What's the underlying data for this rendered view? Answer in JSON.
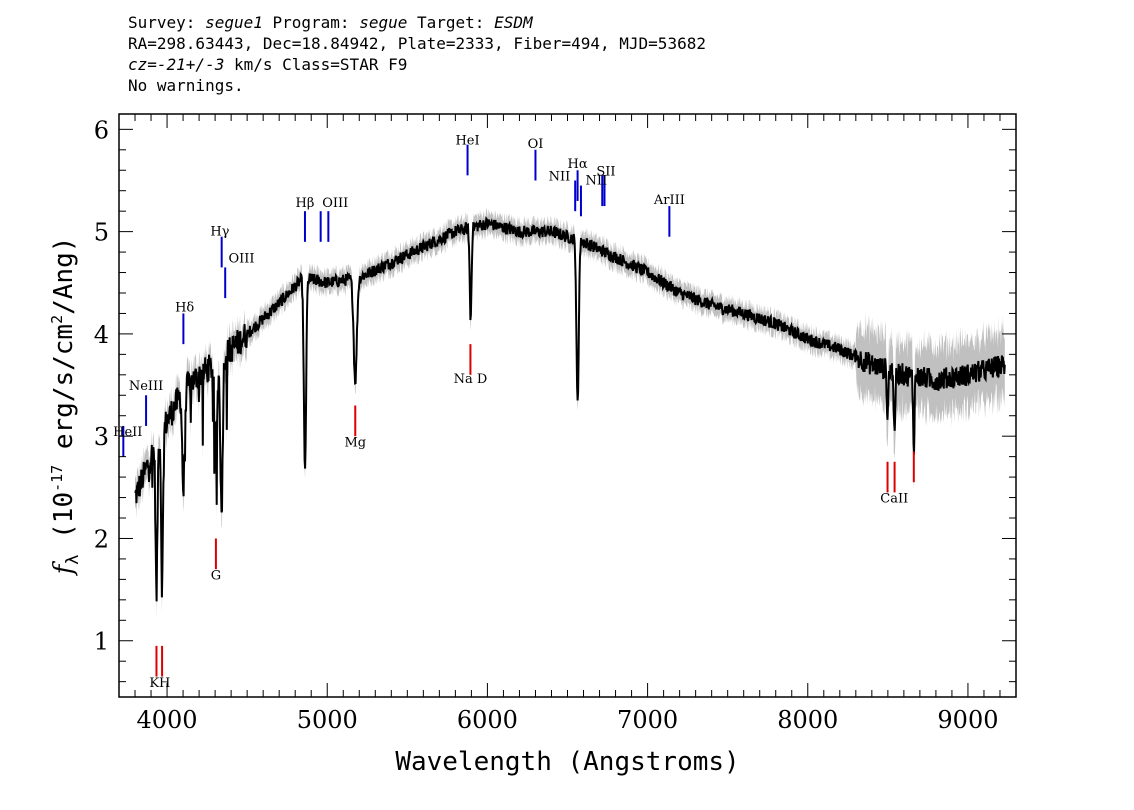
{
  "header": {
    "survey_label": "Survey: ",
    "survey_value": "segue1",
    "program_label": " Program: ",
    "program_value": "segue",
    "target_label": " Target: ",
    "target_value": "ESDM",
    "line2": "RA=298.63443, Dec=18.84942, Plate=2333, Fiber=494, MJD=53682",
    "cz_label": "cz",
    "cz_value": "=-21+/-3",
    "cz_rest": " km/s Class=STAR F9",
    "warnings": "No warnings."
  },
  "chart_data": {
    "type": "line",
    "xlabel": "Wavelength (Angstroms)",
    "ylabel": "f_λ (10^-17 erg/s/cm^2/Ang)",
    "xlim": [
      3700,
      9300
    ],
    "ylim": [
      0.45,
      6.15
    ],
    "x_ticks": [
      4000,
      5000,
      6000,
      7000,
      8000,
      9000
    ],
    "y_ticks": [
      1,
      2,
      3,
      4,
      5,
      6
    ],
    "grid": false,
    "colors": {
      "flux": "#000000",
      "error": "#c0c0c0",
      "emission": "#0000cc",
      "absorption": "#dd0000",
      "label_line": "#555555"
    },
    "continuum_points": [
      [
        3800,
        2.4
      ],
      [
        3900,
        2.8
      ],
      [
        4000,
        3.15
      ],
      [
        4100,
        3.45
      ],
      [
        4200,
        3.6
      ],
      [
        4300,
        3.7
      ],
      [
        4400,
        3.85
      ],
      [
        4500,
        4.0
      ],
      [
        4700,
        4.3
      ],
      [
        4850,
        4.55
      ],
      [
        5000,
        4.5
      ],
      [
        5200,
        4.55
      ],
      [
        5400,
        4.7
      ],
      [
        5600,
        4.85
      ],
      [
        5800,
        5.0
      ],
      [
        6000,
        5.08
      ],
      [
        6200,
        5.0
      ],
      [
        6400,
        5.0
      ],
      [
        6600,
        4.9
      ],
      [
        6800,
        4.75
      ],
      [
        7000,
        4.6
      ],
      [
        7200,
        4.4
      ],
      [
        7400,
        4.28
      ],
      [
        7600,
        4.2
      ],
      [
        7800,
        4.1
      ],
      [
        8000,
        3.95
      ],
      [
        8200,
        3.85
      ],
      [
        8400,
        3.7
      ],
      [
        8600,
        3.6
      ],
      [
        8800,
        3.55
      ],
      [
        9000,
        3.6
      ],
      [
        9230,
        3.7
      ]
    ],
    "absorption_dips": [
      [
        3934,
        1.5,
        8
      ],
      [
        3969,
        1.5,
        8
      ],
      [
        4102,
        1.0,
        10
      ],
      [
        4340,
        1.5,
        10
      ],
      [
        4305,
        0.8,
        12
      ],
      [
        4861,
        1.9,
        10
      ],
      [
        5175,
        1.0,
        14
      ],
      [
        5895,
        0.9,
        8
      ],
      [
        6563,
        1.6,
        10
      ],
      [
        8498,
        0.5,
        6
      ],
      [
        8542,
        0.7,
        6
      ],
      [
        8662,
        0.7,
        6
      ]
    ],
    "emission_lines": [
      {
        "label": "HeII",
        "x": 3727,
        "y": 2.95
      },
      {
        "label": "NeIII",
        "x": 3869,
        "y": 3.25
      },
      {
        "label": "Hδ",
        "x": 4102,
        "y": 4.05
      },
      {
        "label": "Hγ",
        "x": 4341,
        "y": 4.8
      },
      {
        "label": "OIII",
        "x": 4363,
        "y": 4.5
      },
      {
        "label": "Hβ",
        "x": 4861,
        "y": 5.05
      },
      {
        "label": "OIII",
        "x": 4959,
        "y": 5.05
      },
      {
        "label": "OIII",
        "x": 5007,
        "y": 5.05
      },
      {
        "label": "HeI",
        "x": 5876,
        "y": 5.7
      },
      {
        "label": "OI",
        "x": 6300,
        "y": 5.65
      },
      {
        "label": "NII",
        "x": 6548,
        "y": 5.35
      },
      {
        "label": "Hα",
        "x": 6563,
        "y": 5.45
      },
      {
        "label": "NII",
        "x": 6584,
        "y": 5.3
      },
      {
        "label": "SII",
        "x": 6717,
        "y": 5.4
      },
      {
        "label": "SII",
        "x": 6731,
        "y": 5.4
      },
      {
        "label": "ArIII",
        "x": 7136,
        "y": 5.1
      }
    ],
    "absorption_lines": [
      {
        "label": "K",
        "x": 3934,
        "y": 0.8
      },
      {
        "label": "H",
        "x": 3969,
        "y": 0.8
      },
      {
        "label": "G",
        "x": 4305,
        "y": 1.85
      },
      {
        "label": "Mg",
        "x": 5175,
        "y": 3.15
      },
      {
        "label": "Na D",
        "x": 5894,
        "y": 3.75
      },
      {
        "label": "CaII",
        "x": 8498,
        "y": 2.6
      },
      {
        "label": "CaII",
        "x": 8542,
        "y": 2.6
      },
      {
        "label": "CaII",
        "x": 8662,
        "y": 2.7
      }
    ],
    "line_labels": [
      {
        "text": "HeII",
        "x": 3755,
        "y": 3.0
      },
      {
        "text": "NeIII",
        "x": 3869,
        "y": 3.45
      },
      {
        "text": "Hδ",
        "x": 4110,
        "y": 4.22
      },
      {
        "text": "Hγ",
        "x": 4330,
        "y": 4.96
      },
      {
        "text": "OIII",
        "x": 4465,
        "y": 4.7
      },
      {
        "text": "Hβ",
        "x": 4861,
        "y": 5.24
      },
      {
        "text": "OIII",
        "x": 5050,
        "y": 5.24
      },
      {
        "text": "HeI",
        "x": 5876,
        "y": 5.85
      },
      {
        "text": "OI",
        "x": 6300,
        "y": 5.82
      },
      {
        "text": "NII",
        "x": 6450,
        "y": 5.5
      },
      {
        "text": "Hα",
        "x": 6563,
        "y": 5.62
      },
      {
        "text": "NII",
        "x": 6680,
        "y": 5.46
      },
      {
        "text": "SII",
        "x": 6740,
        "y": 5.55
      },
      {
        "text": "ArIII",
        "x": 7136,
        "y": 5.27
      },
      {
        "text": "KH",
        "x": 3955,
        "y": 0.55
      },
      {
        "text": "G",
        "x": 4305,
        "y": 1.6
      },
      {
        "text": "Mg",
        "x": 5175,
        "y": 2.9
      },
      {
        "text": "Na D",
        "x": 5894,
        "y": 3.52
      },
      {
        "text": "CaII",
        "x": 8540,
        "y": 2.35
      }
    ]
  }
}
